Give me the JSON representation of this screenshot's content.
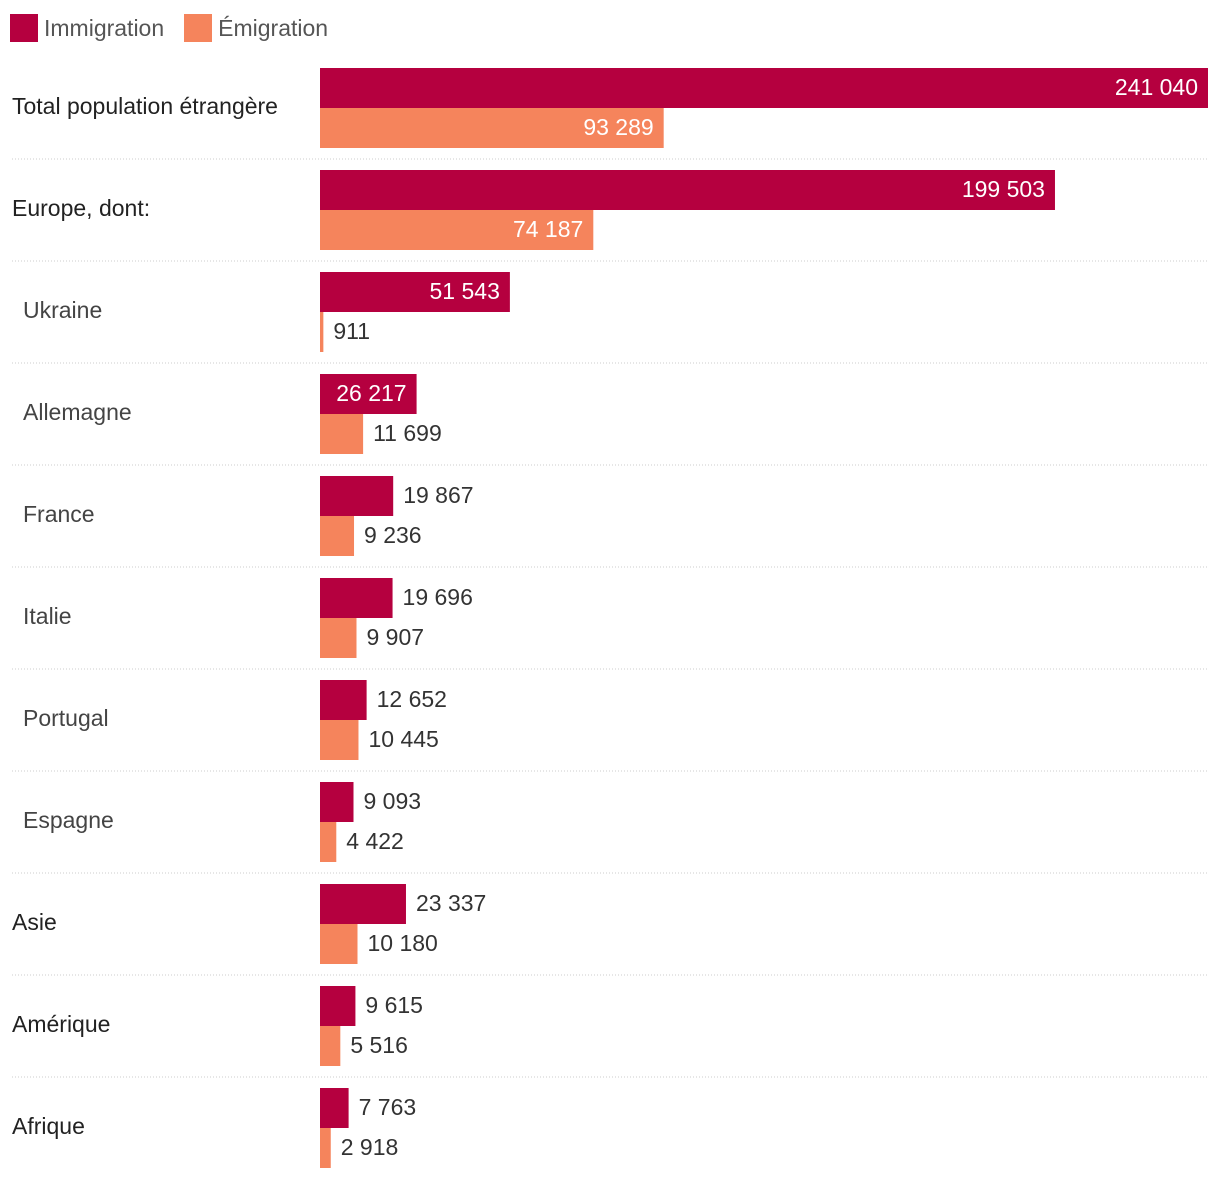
{
  "legend": {
    "immigration": "Immigration",
    "emigration": "Émigration"
  },
  "colors": {
    "immigration": "#b5003f",
    "emigration": "#f5845c"
  },
  "chart_data": {
    "type": "bar",
    "orientation": "horizontal",
    "grouped": true,
    "legend_position": "top-left",
    "grid": false,
    "xlim": [
      0,
      241040
    ],
    "categories": [
      {
        "label": "Total population étrangère",
        "indent": false
      },
      {
        "label": "Europe, dont:",
        "indent": false
      },
      {
        "label": "Ukraine",
        "indent": true
      },
      {
        "label": "Allemagne",
        "indent": true
      },
      {
        "label": "France",
        "indent": true
      },
      {
        "label": "Italie",
        "indent": true
      },
      {
        "label": "Portugal",
        "indent": true
      },
      {
        "label": "Espagne",
        "indent": true
      },
      {
        "label": "Asie",
        "indent": false
      },
      {
        "label": "Amérique",
        "indent": false
      },
      {
        "label": "Afrique",
        "indent": false
      }
    ],
    "series": [
      {
        "name": "Immigration",
        "values": [
          241040,
          199503,
          51543,
          26217,
          19867,
          19696,
          12652,
          9093,
          23337,
          9615,
          7763
        ],
        "labels": [
          "241 040",
          "199 503",
          "51 543",
          "26 217",
          "19 867",
          "19 696",
          "12 652",
          "9 093",
          "23 337",
          "9 615",
          "7 763"
        ]
      },
      {
        "name": "Émigration",
        "values": [
          93289,
          74187,
          911,
          11699,
          9236,
          9907,
          10445,
          4422,
          10180,
          5516,
          2918
        ],
        "labels": [
          "93 289",
          "74 187",
          "911",
          "11 699",
          "9 236",
          "9 907",
          "10 445",
          "4 422",
          "10 180",
          "5 516",
          "2 918"
        ]
      }
    ]
  }
}
